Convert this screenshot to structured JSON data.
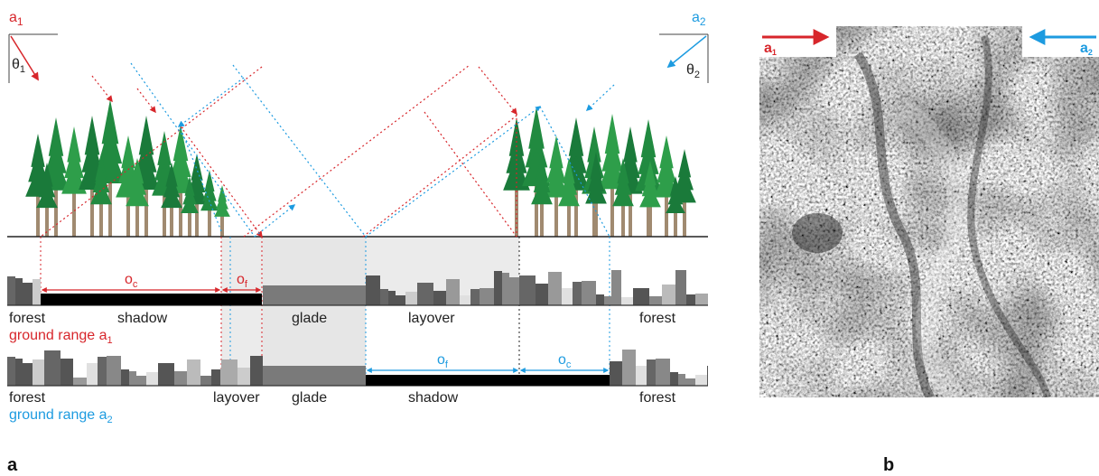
{
  "diagram": {
    "angle_a1": {
      "letter": "a",
      "sub": "1"
    },
    "angle_a2": {
      "letter": "a",
      "sub": "2"
    },
    "theta1": {
      "letter": "θ",
      "sub": "1"
    },
    "theta2": {
      "letter": "θ",
      "sub": "2"
    },
    "row1": {
      "oc": {
        "letter": "o",
        "sub": "c"
      },
      "of": {
        "letter": "o",
        "sub": "f"
      },
      "labels": {
        "forest_left": "forest",
        "shadow": "shadow",
        "glade": "glade",
        "layover": "layover",
        "forest_right": "forest"
      },
      "ground_range": {
        "text": "ground range a",
        "sub": "1"
      }
    },
    "row2": {
      "of": {
        "letter": "o",
        "sub": "f"
      },
      "oc": {
        "letter": "o",
        "sub": "c"
      },
      "labels": {
        "forest_left": "forest",
        "layover": "layover",
        "glade": "glade",
        "shadow": "shadow",
        "forest_right": "forest"
      },
      "ground_range": {
        "text": "ground range a",
        "sub": "2"
      }
    },
    "panel_label": "a"
  },
  "sar_image": {
    "arrow_a1": {
      "letter": "a",
      "sub": "1"
    },
    "arrow_a2": {
      "letter": "a",
      "sub": "2"
    },
    "panel_label": "b"
  },
  "colors": {
    "red": "#d7262b",
    "blue": "#1d9be0",
    "tree_dark": "#1a7a3a",
    "tree_mid": "#2e9e4a",
    "trunk": "#a08a70"
  }
}
